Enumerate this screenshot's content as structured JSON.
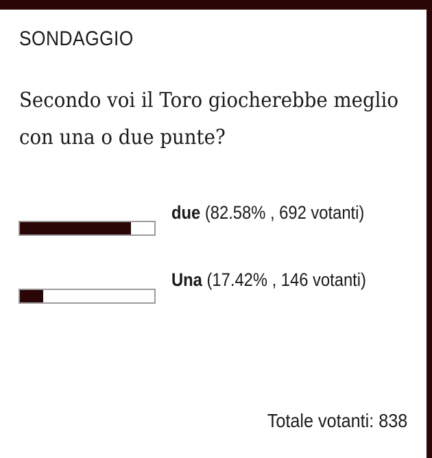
{
  "poll": {
    "title": "SONDAGGIO",
    "question": "Secondo voi il Toro giocherebbe meglio con una o due punte?",
    "accent_color": "#2b0606",
    "options": [
      {
        "label": "due",
        "detail": "(82.58% , 692 votanti)",
        "percent": 82.58
      },
      {
        "label": "Una",
        "detail": "(17.42% , 146 votanti)",
        "percent": 17.42
      }
    ],
    "total": "Totale votanti: 838"
  }
}
